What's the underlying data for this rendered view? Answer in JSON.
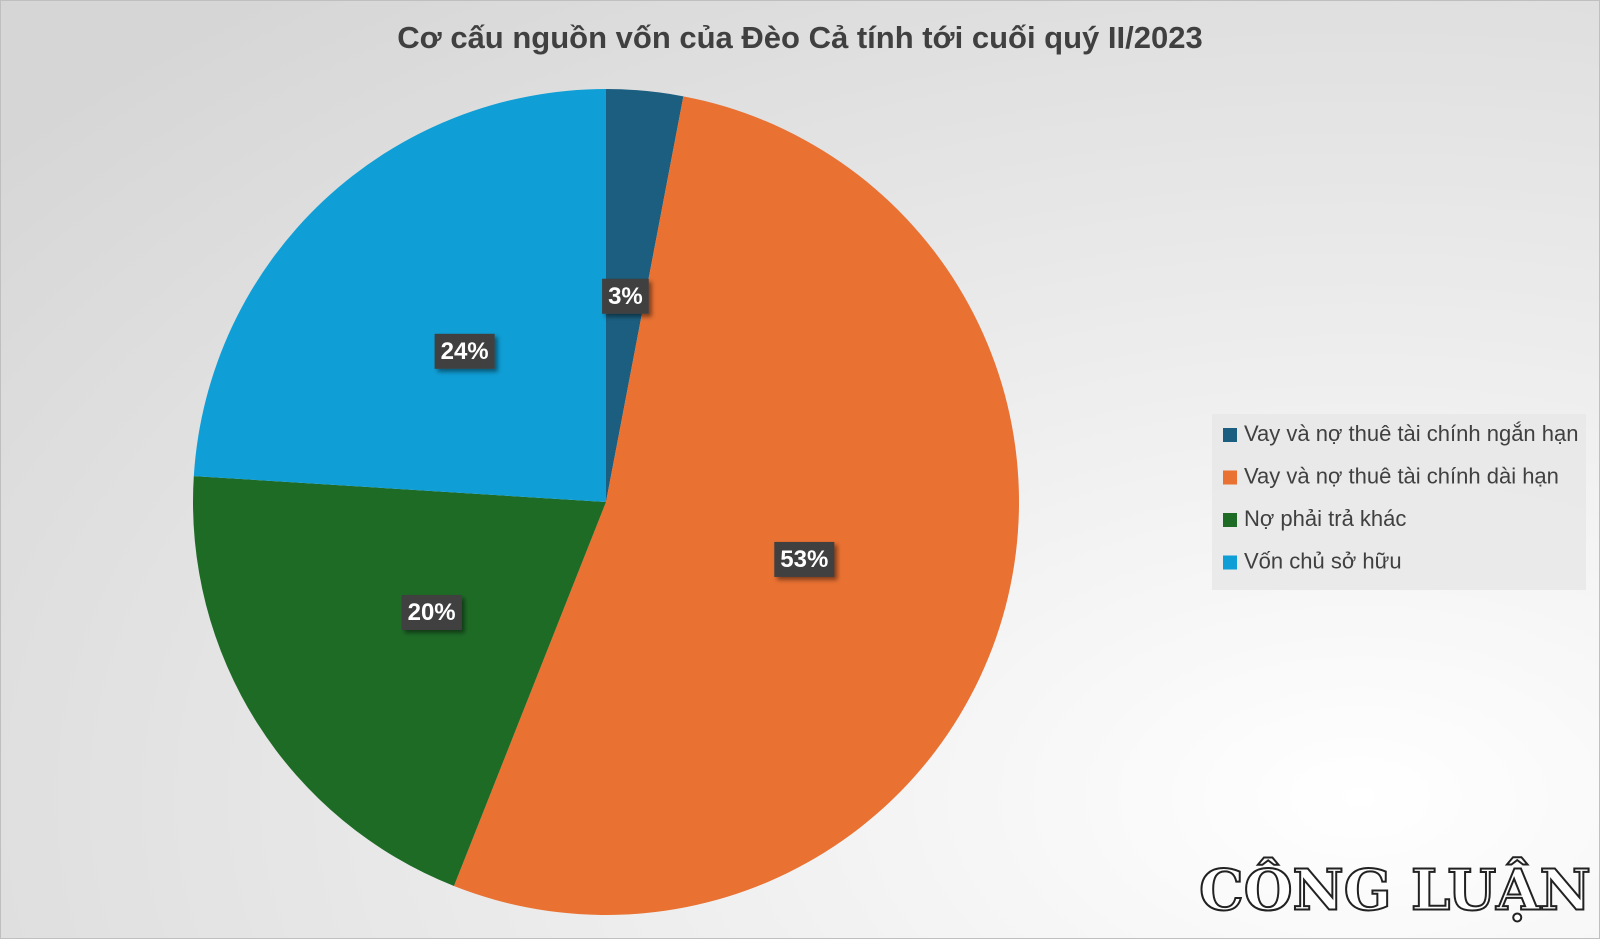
{
  "chart_data": {
    "type": "pie",
    "title": "Cơ cấu nguồn vốn của Đèo Cả tính tới cuối quý II/2023",
    "categories": [
      "Vay và nợ thuê tài chính ngắn hạn",
      "Vay và nợ thuê tài chính dài hạn",
      "Nợ phải trả khác",
      "Vốn chủ sở hữu"
    ],
    "values": [
      3,
      53,
      20,
      24
    ],
    "value_labels": [
      "3%",
      "53%",
      "20%",
      "24%"
    ],
    "colors": [
      "#1b5e80",
      "#e97132",
      "#1e6b26",
      "#0f9ed5"
    ],
    "legend": "right"
  },
  "watermark": "CÔNG LUẬN"
}
